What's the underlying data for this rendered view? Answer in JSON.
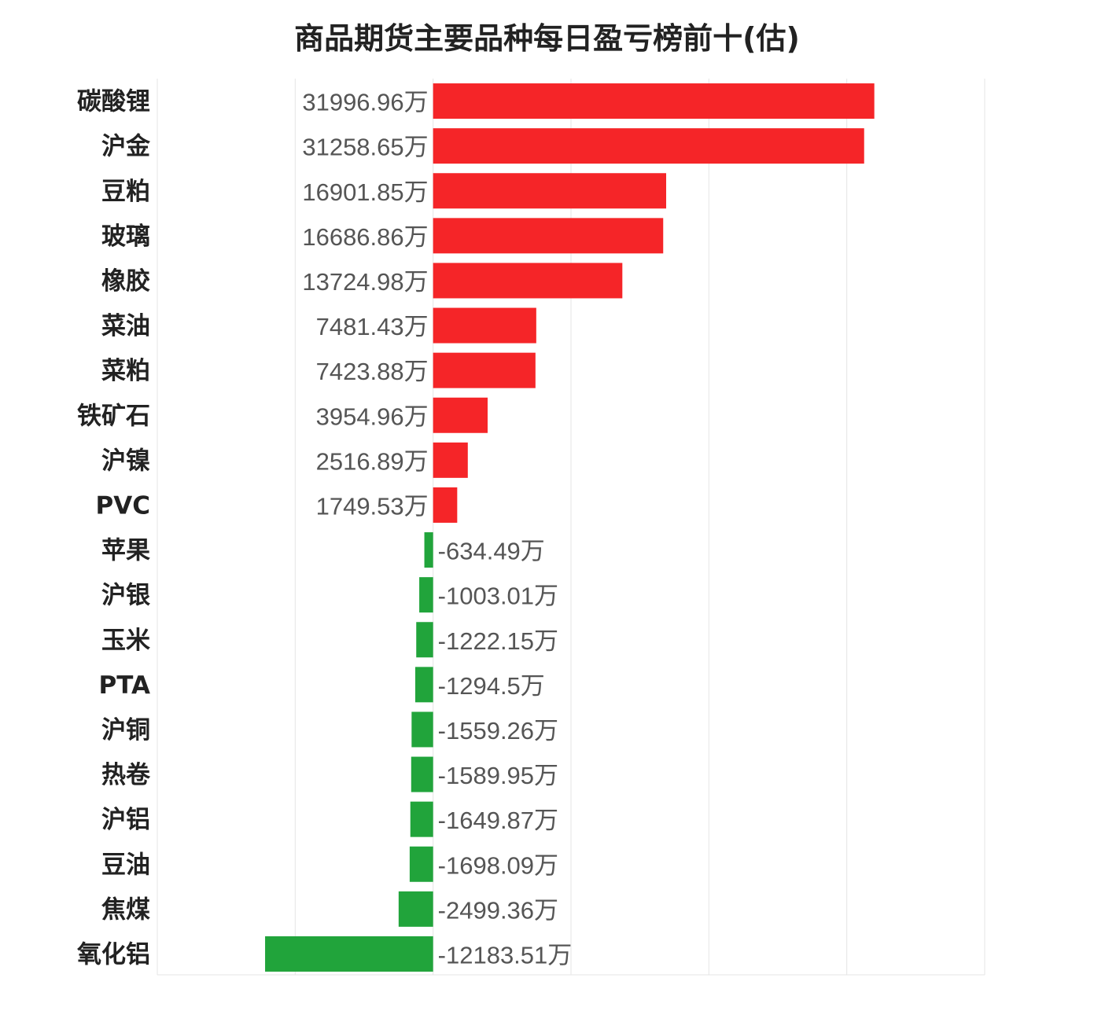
{
  "chart_data": {
    "type": "bar",
    "orientation": "horizontal",
    "title": "商品期货主要品种每日盈亏榜前十(估)",
    "unit_suffix": "万",
    "categories": [
      "碳酸锂",
      "沪金",
      "豆粕",
      "玻璃",
      "橡胶",
      "菜油",
      "菜粕",
      "铁矿石",
      "沪镍",
      "PVC",
      "苹果",
      "沪银",
      "玉米",
      "PTA",
      "沪铜",
      "热卷",
      "沪铝",
      "豆油",
      "焦煤",
      "氧化铝"
    ],
    "values": [
      31996.96,
      31258.65,
      16901.85,
      16686.86,
      13724.98,
      7481.43,
      7423.88,
      3954.96,
      2516.89,
      1749.53,
      -634.49,
      -1003.01,
      -1222.15,
      -1294.5,
      -1559.26,
      -1589.95,
      -1649.87,
      -1698.09,
      -2499.36,
      -12183.51
    ],
    "labels": [
      "31996.96万",
      "31258.65万",
      "16901.85万",
      "16686.86万",
      "13724.98万",
      "7481.43万",
      "7423.88万",
      "3954.96万",
      "2516.89万",
      "1749.53万",
      "-634.49万",
      "-1003.01万",
      "-1222.15万",
      "-1294.5万",
      "-1559.26万",
      "-1589.95万",
      "-1649.87万",
      "-1698.09万",
      "-2499.36万",
      "-12183.51万"
    ],
    "xlim": [
      -20000,
      40000
    ],
    "grid_x": [
      -20000,
      -10000,
      0,
      10000,
      20000,
      30000,
      40000
    ],
    "grid": true,
    "colors": {
      "positive": "#f52528",
      "negative": "#21a43b",
      "grid": "#e5e5e5",
      "label": "#555555",
      "category": "#222222"
    }
  }
}
